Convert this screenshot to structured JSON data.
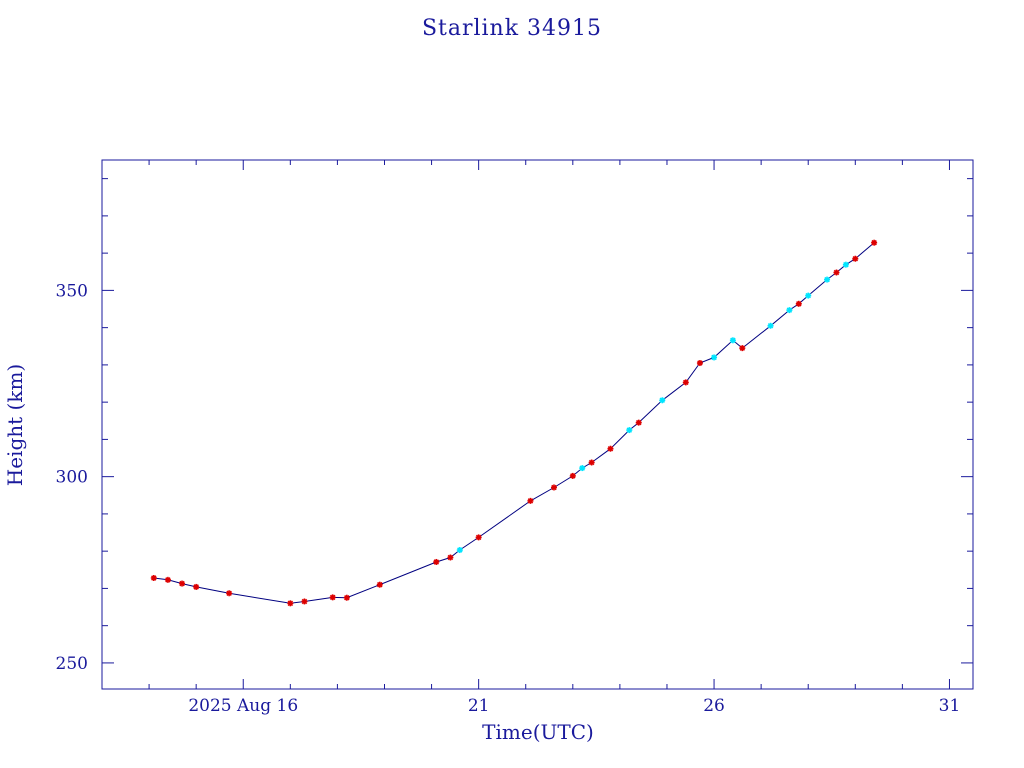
{
  "chart_data": {
    "type": "line",
    "title": "Starlink 34915",
    "xlabel": "Time(UTC)",
    "ylabel": "Height (km)",
    "x_unit": "date (UTC)",
    "xlim": [
      "2025-08-13",
      "2025-08-31T12:00"
    ],
    "ylim": [
      243,
      385
    ],
    "x_ticks": [
      {
        "value": "2025-08-16",
        "label": "2025 Aug 16"
      },
      {
        "value": "2025-08-21",
        "label": "21"
      },
      {
        "value": "2025-08-26",
        "label": "26"
      },
      {
        "value": "2025-08-31",
        "label": "31"
      }
    ],
    "y_ticks": [
      250,
      300,
      350
    ],
    "grid": false,
    "colors": {
      "axes": "#1a1a9c",
      "line": "#000080",
      "marker_primary": "#dd0000",
      "marker_secondary": "#00e5ff"
    },
    "series": [
      {
        "points": [
          {
            "x": "2025-08-14T02:24",
            "y": 272.8,
            "source": "primary"
          },
          {
            "x": "2025-08-14T09:36",
            "y": 272.3,
            "source": "primary"
          },
          {
            "x": "2025-08-14T16:48",
            "y": 271.3,
            "source": "primary"
          },
          {
            "x": "2025-08-15T00:00",
            "y": 270.4,
            "source": "primary"
          },
          {
            "x": "2025-08-15T16:48",
            "y": 268.7,
            "source": "primary"
          },
          {
            "x": "2025-08-17T00:00",
            "y": 266.0,
            "source": "primary"
          },
          {
            "x": "2025-08-17T07:12",
            "y": 266.5,
            "source": "primary"
          },
          {
            "x": "2025-08-17T21:36",
            "y": 267.6,
            "source": "primary"
          },
          {
            "x": "2025-08-18T04:48",
            "y": 267.5,
            "source": "primary"
          },
          {
            "x": "2025-08-18T21:36",
            "y": 271.0,
            "source": "primary"
          },
          {
            "x": "2025-08-20T02:24",
            "y": 277.1,
            "source": "primary"
          },
          {
            "x": "2025-08-20T09:36",
            "y": 278.3,
            "source": "primary"
          },
          {
            "x": "2025-08-20T14:24",
            "y": 280.3,
            "source": "secondary"
          },
          {
            "x": "2025-08-21T00:00",
            "y": 283.7,
            "source": "primary"
          },
          {
            "x": "2025-08-22T02:24",
            "y": 293.5,
            "source": "primary"
          },
          {
            "x": "2025-08-22T14:24",
            "y": 297.1,
            "source": "primary"
          },
          {
            "x": "2025-08-23T00:00",
            "y": 300.2,
            "source": "primary"
          },
          {
            "x": "2025-08-23T04:48",
            "y": 302.3,
            "source": "secondary"
          },
          {
            "x": "2025-08-23T09:36",
            "y": 303.8,
            "source": "primary"
          },
          {
            "x": "2025-08-23T19:12",
            "y": 307.5,
            "source": "primary"
          },
          {
            "x": "2025-08-24T04:48",
            "y": 312.5,
            "source": "secondary"
          },
          {
            "x": "2025-08-24T09:36",
            "y": 314.5,
            "source": "primary"
          },
          {
            "x": "2025-08-24T21:36",
            "y": 320.5,
            "source": "secondary"
          },
          {
            "x": "2025-08-25T09:36",
            "y": 325.3,
            "source": "primary"
          },
          {
            "x": "2025-08-25T16:48",
            "y": 330.5,
            "source": "primary"
          },
          {
            "x": "2025-08-26T00:00",
            "y": 332.0,
            "source": "secondary"
          },
          {
            "x": "2025-08-26T09:36",
            "y": 336.6,
            "source": "secondary"
          },
          {
            "x": "2025-08-26T14:24",
            "y": 334.5,
            "source": "primary"
          },
          {
            "x": "2025-08-27T04:48",
            "y": 340.5,
            "source": "secondary"
          },
          {
            "x": "2025-08-27T14:24",
            "y": 344.7,
            "source": "secondary"
          },
          {
            "x": "2025-08-27T19:12",
            "y": 346.4,
            "source": "primary"
          },
          {
            "x": "2025-08-28T00:00",
            "y": 348.6,
            "source": "secondary"
          },
          {
            "x": "2025-08-28T09:36",
            "y": 352.9,
            "source": "secondary"
          },
          {
            "x": "2025-08-28T14:24",
            "y": 354.8,
            "source": "primary"
          },
          {
            "x": "2025-08-28T19:12",
            "y": 356.9,
            "source": "secondary"
          },
          {
            "x": "2025-08-29T00:00",
            "y": 358.5,
            "source": "primary"
          },
          {
            "x": "2025-08-29T09:36",
            "y": 362.8,
            "source": "primary"
          }
        ]
      }
    ]
  }
}
